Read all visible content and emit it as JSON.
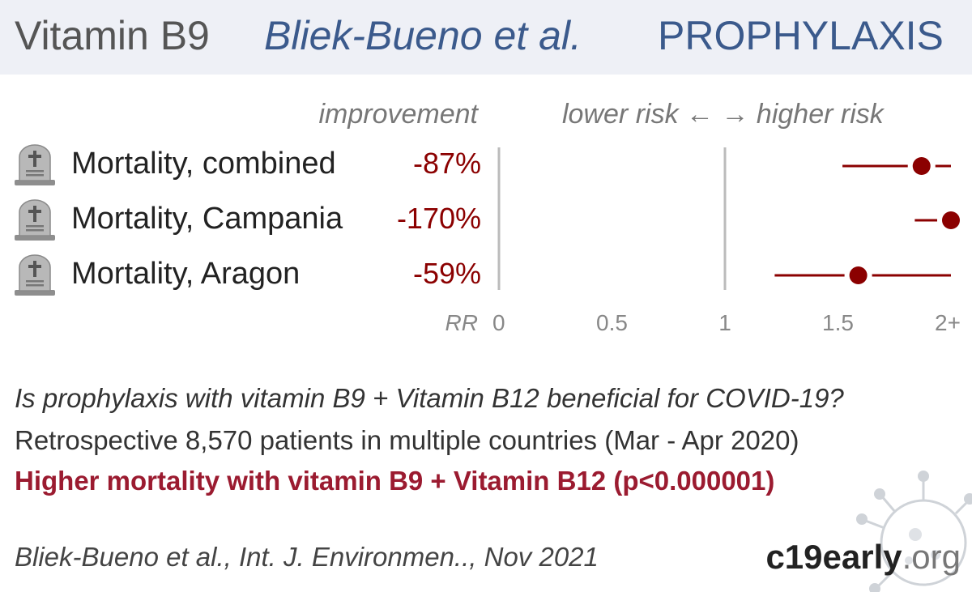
{
  "header": {
    "treatment": "Vitamin B9",
    "study": "Bliek-Bueno et al.",
    "category": "PROPHYLAXIS"
  },
  "columns": {
    "improvement": "improvement",
    "risk_direction": "lower risk ← → higher risk"
  },
  "icon_name": "tombstone-icon",
  "chart_data": {
    "type": "forest",
    "axis_label": "RR",
    "xlim": [
      0,
      2
    ],
    "ticks": [
      {
        "value": 0,
        "label": "0"
      },
      {
        "value": 0.5,
        "label": "0.5"
      },
      {
        "value": 1,
        "label": "1"
      },
      {
        "value": 1.5,
        "label": "1.5"
      },
      {
        "value": 2,
        "label": "2+"
      }
    ],
    "marker_color": "#8b0000",
    "rows": [
      {
        "label": "Mortality, combined",
        "improvement": "-87%",
        "rr": 1.87,
        "ci": [
          1.52,
          2.0
        ]
      },
      {
        "label": "Mortality, Campania",
        "improvement": "-170%",
        "rr": 2.0,
        "ci": [
          1.84,
          2.0
        ]
      },
      {
        "label": "Mortality, Aragon",
        "improvement": "-59%",
        "rr": 1.59,
        "ci": [
          1.22,
          2.0
        ]
      }
    ]
  },
  "summary": {
    "question": "Is prophylaxis with vitamin B9 + Vitamin B12 beneficial for COVID-19?",
    "design": "Retrospective 8,570 patients in multiple countries (Mar - Apr 2020)",
    "result": "Higher mortality with vitamin B9 + Vitamin B12 (p<0.000001)"
  },
  "citation": "Bliek-Bueno et al., Int. J. Environmen.., Nov 2021",
  "brand": {
    "bold": "c19",
    "rest": "early",
    "tld": ".org"
  }
}
